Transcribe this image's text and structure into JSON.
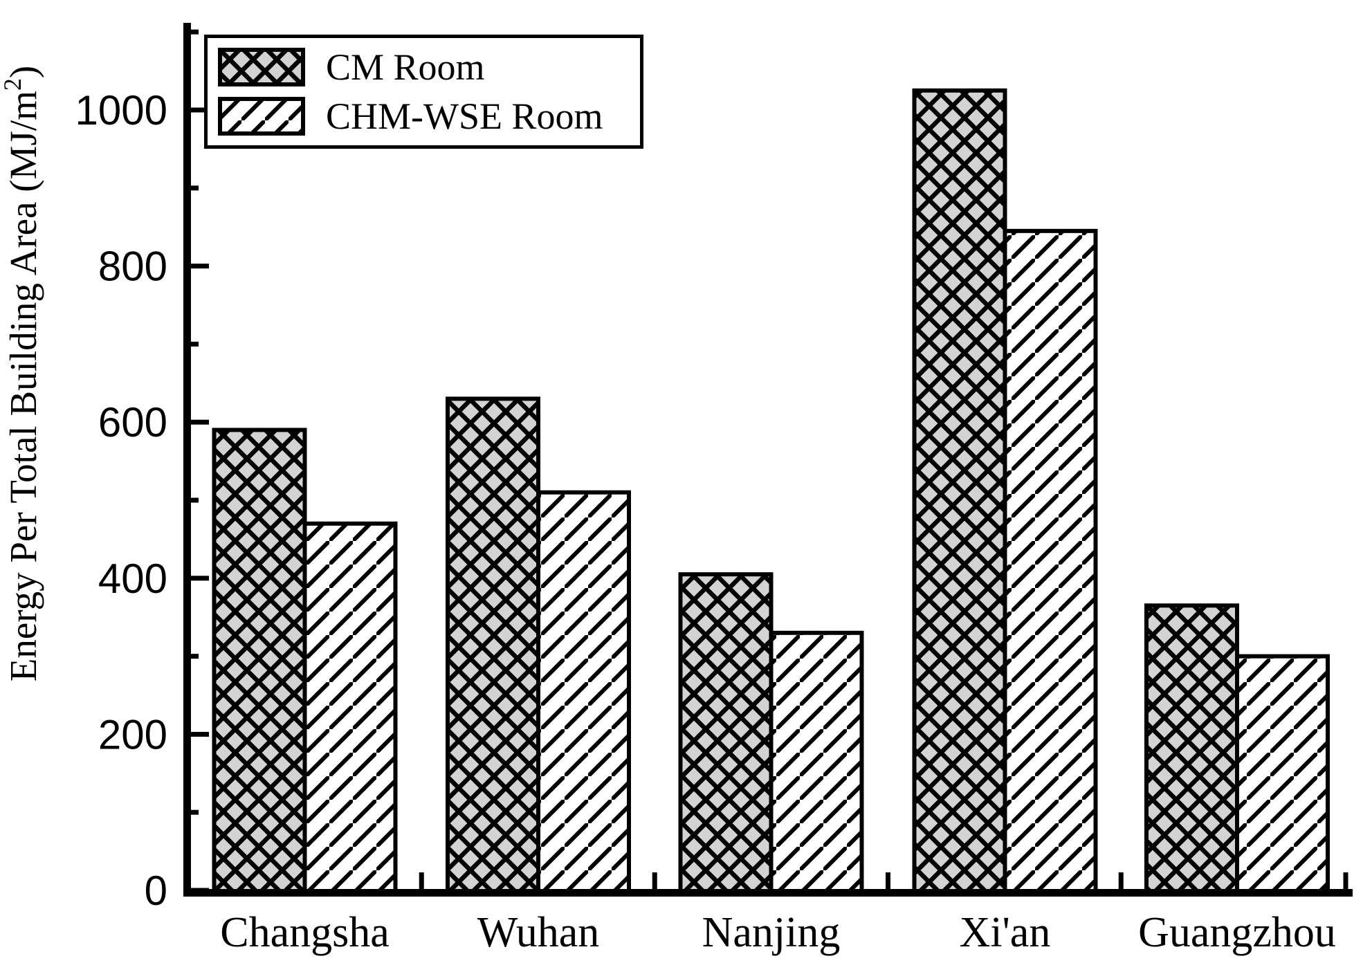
{
  "chart_data": {
    "type": "bar",
    "title": "",
    "categories": [
      "Changsha",
      "Wuhan",
      "Nanjing",
      "Xi'an",
      "Guangzhou"
    ],
    "series": [
      {
        "name": "CM Room",
        "pattern": "crosshatch",
        "values": [
          590,
          630,
          405,
          1025,
          365
        ]
      },
      {
        "name": "CHM-WSE Room",
        "pattern": "diagonal",
        "values": [
          470,
          510,
          330,
          845,
          300
        ]
      }
    ],
    "xlabel": "",
    "ylabel": "Energy Per Total Building Area (MJ/m²)",
    "ylabel_parts": {
      "main": "Energy Per Total Building Area (MJ/m",
      "sup": "2",
      "close": ")"
    },
    "ylim": [
      0,
      1100
    ],
    "y_major_ticks": [
      0,
      200,
      400,
      600,
      800,
      1000
    ],
    "y_minor_ticks": [
      100,
      300,
      500,
      700,
      900,
      1100
    ],
    "grid": false,
    "legend_position": "top-left",
    "colors": {
      "bar_gray": "#d3d3d3",
      "line": "#000000",
      "background": "#ffffff"
    }
  }
}
